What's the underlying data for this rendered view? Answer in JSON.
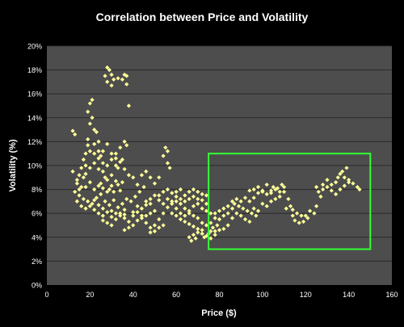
{
  "chart_data": {
    "type": "scatter",
    "title": "Correlation between Price and Volatility",
    "xlabel": "Price ($)",
    "ylabel": "Volatility (%)",
    "xlim": [
      0,
      160
    ],
    "ylim": [
      0,
      0.2
    ],
    "x_ticks": [
      "0",
      "20",
      "40",
      "60",
      "80",
      "100",
      "120",
      "140",
      "160"
    ],
    "y_ticks": [
      "0%",
      "2%",
      "4%",
      "6%",
      "8%",
      "10%",
      "12%",
      "14%",
      "16%",
      "18%",
      "20%"
    ],
    "grid": "horizontal",
    "legend": "none",
    "colors": {
      "background": "#000000",
      "plot_area": "#4d4d4d",
      "gridline": "#2a2a2a",
      "points": "#ffff99",
      "highlight_box": "#33ff33"
    },
    "highlight_box": {
      "x": [
        75,
        150
      ],
      "y": [
        0.03,
        0.11
      ]
    },
    "points": [
      [
        12,
        0.129
      ],
      [
        13,
        0.126
      ],
      [
        12,
        0.095
      ],
      [
        14,
        0.085
      ],
      [
        15,
        0.08
      ],
      [
        16,
        0.082
      ],
      [
        14,
        0.088
      ],
      [
        17,
        0.09
      ],
      [
        18,
        0.1
      ],
      [
        18,
        0.11
      ],
      [
        19,
        0.122
      ],
      [
        20,
        0.135
      ],
      [
        21,
        0.14
      ],
      [
        20,
        0.152
      ],
      [
        21,
        0.155
      ],
      [
        19,
        0.145
      ],
      [
        22,
        0.13
      ],
      [
        23,
        0.128
      ],
      [
        24,
        0.12
      ],
      [
        22,
        0.118
      ],
      [
        20,
        0.112
      ],
      [
        24,
        0.112
      ],
      [
        25,
        0.108
      ],
      [
        26,
        0.095
      ],
      [
        27,
        0.09
      ],
      [
        25,
        0.085
      ],
      [
        28,
        0.088
      ],
      [
        30,
        0.092
      ],
      [
        29,
        0.08
      ],
      [
        31,
        0.078
      ],
      [
        33,
        0.084
      ],
      [
        35,
        0.086
      ],
      [
        32,
        0.11
      ],
      [
        34,
        0.115
      ],
      [
        36,
        0.12
      ],
      [
        37,
        0.117
      ],
      [
        35,
        0.105
      ],
      [
        33,
        0.098
      ],
      [
        38,
        0.092
      ],
      [
        40,
        0.09
      ],
      [
        38,
        0.15
      ],
      [
        28,
        0.182
      ],
      [
        29,
        0.18
      ],
      [
        30,
        0.176
      ],
      [
        27,
        0.175
      ],
      [
        28,
        0.17
      ],
      [
        31,
        0.172
      ],
      [
        30,
        0.167
      ],
      [
        33,
        0.173
      ],
      [
        35,
        0.172
      ],
      [
        36,
        0.176
      ],
      [
        37,
        0.175
      ],
      [
        37,
        0.168
      ],
      [
        15,
        0.075
      ],
      [
        17,
        0.072
      ],
      [
        19,
        0.07
      ],
      [
        21,
        0.068
      ],
      [
        23,
        0.073
      ],
      [
        25,
        0.076
      ],
      [
        27,
        0.07
      ],
      [
        29,
        0.067
      ],
      [
        31,
        0.071
      ],
      [
        33,
        0.065
      ],
      [
        35,
        0.068
      ],
      [
        37,
        0.072
      ],
      [
        39,
        0.07
      ],
      [
        41,
        0.074
      ],
      [
        43,
        0.078
      ],
      [
        45,
        0.082
      ],
      [
        42,
        0.084
      ],
      [
        44,
        0.092
      ],
      [
        46,
        0.095
      ],
      [
        48,
        0.09
      ],
      [
        50,
        0.085
      ],
      [
        52,
        0.09
      ],
      [
        54,
        0.108
      ],
      [
        55,
        0.115
      ],
      [
        56,
        0.112
      ],
      [
        56,
        0.102
      ],
      [
        57,
        0.098
      ],
      [
        22,
        0.063
      ],
      [
        24,
        0.06
      ],
      [
        26,
        0.058
      ],
      [
        30,
        0.062
      ],
      [
        34,
        0.06
      ],
      [
        36,
        0.063
      ],
      [
        40,
        0.061
      ],
      [
        42,
        0.066
      ],
      [
        46,
        0.07
      ],
      [
        48,
        0.068
      ],
      [
        26,
        0.054
      ],
      [
        28,
        0.052
      ],
      [
        30,
        0.05
      ],
      [
        32,
        0.055
      ],
      [
        36,
        0.056
      ],
      [
        38,
        0.053
      ],
      [
        40,
        0.058
      ],
      [
        44,
        0.058
      ],
      [
        46,
        0.052
      ],
      [
        48,
        0.048
      ],
      [
        50,
        0.05
      ],
      [
        52,
        0.055
      ],
      [
        54,
        0.06
      ],
      [
        56,
        0.065
      ],
      [
        58,
        0.068
      ],
      [
        60,
        0.07
      ],
      [
        62,
        0.072
      ],
      [
        64,
        0.075
      ],
      [
        66,
        0.078
      ],
      [
        68,
        0.08
      ],
      [
        70,
        0.078
      ],
      [
        72,
        0.076
      ],
      [
        74,
        0.075
      ],
      [
        52,
        0.075
      ],
      [
        54,
        0.078
      ],
      [
        56,
        0.08
      ],
      [
        58,
        0.077
      ],
      [
        60,
        0.074
      ],
      [
        62,
        0.068
      ],
      [
        64,
        0.064
      ],
      [
        66,
        0.06
      ],
      [
        68,
        0.058
      ],
      [
        70,
        0.056
      ],
      [
        72,
        0.052
      ],
      [
        74,
        0.05
      ],
      [
        76,
        0.052
      ],
      [
        78,
        0.056
      ],
      [
        76,
        0.045
      ],
      [
        72,
        0.046
      ],
      [
        70,
        0.044
      ],
      [
        68,
        0.042
      ],
      [
        66,
        0.04
      ],
      [
        67,
        0.037
      ],
      [
        69,
        0.039
      ],
      [
        73,
        0.04
      ],
      [
        75,
        0.043
      ],
      [
        77,
        0.048
      ],
      [
        79,
        0.05
      ],
      [
        80,
        0.055
      ],
      [
        82,
        0.058
      ],
      [
        84,
        0.06
      ],
      [
        86,
        0.064
      ],
      [
        87,
        0.068
      ],
      [
        89,
        0.066
      ],
      [
        90,
        0.07
      ],
      [
        92,
        0.073
      ],
      [
        94,
        0.07
      ],
      [
        96,
        0.073
      ],
      [
        98,
        0.077
      ],
      [
        100,
        0.079
      ],
      [
        102,
        0.076
      ],
      [
        104,
        0.079
      ],
      [
        105,
        0.082
      ],
      [
        107,
        0.081
      ],
      [
        109,
        0.084
      ],
      [
        110,
        0.078
      ],
      [
        112,
        0.072
      ],
      [
        113,
        0.066
      ],
      [
        114,
        0.063
      ],
      [
        116,
        0.06
      ],
      [
        118,
        0.058
      ],
      [
        120,
        0.058
      ],
      [
        122,
        0.062
      ],
      [
        124,
        0.06
      ],
      [
        125,
        0.066
      ],
      [
        88,
        0.06
      ],
      [
        90,
        0.058
      ],
      [
        92,
        0.055
      ],
      [
        94,
        0.053
      ],
      [
        86,
        0.056
      ],
      [
        84,
        0.05
      ],
      [
        82,
        0.047
      ],
      [
        80,
        0.046
      ],
      [
        78,
        0.045
      ],
      [
        96,
        0.064
      ],
      [
        98,
        0.062
      ],
      [
        100,
        0.068
      ],
      [
        102,
        0.066
      ],
      [
        104,
        0.07
      ],
      [
        106,
        0.072
      ],
      [
        108,
        0.074
      ],
      [
        115,
        0.054
      ],
      [
        117,
        0.052
      ],
      [
        119,
        0.053
      ],
      [
        121,
        0.056
      ],
      [
        111,
        0.064
      ],
      [
        114,
        0.058
      ],
      [
        126,
        0.078
      ],
      [
        128,
        0.08
      ],
      [
        130,
        0.082
      ],
      [
        132,
        0.084
      ],
      [
        134,
        0.086
      ],
      [
        135,
        0.09
      ],
      [
        136,
        0.093
      ],
      [
        137,
        0.095
      ],
      [
        139,
        0.098
      ],
      [
        138,
        0.09
      ],
      [
        140,
        0.088
      ],
      [
        142,
        0.085
      ],
      [
        144,
        0.082
      ],
      [
        145,
        0.08
      ],
      [
        128,
        0.084
      ],
      [
        130,
        0.088
      ],
      [
        132,
        0.079
      ],
      [
        134,
        0.076
      ],
      [
        136,
        0.08
      ],
      [
        138,
        0.083
      ],
      [
        140,
        0.086
      ],
      [
        125,
        0.082
      ],
      [
        127,
        0.074
      ],
      [
        16,
        0.098
      ],
      [
        18,
        0.093
      ],
      [
        20,
        0.098
      ],
      [
        22,
        0.102
      ],
      [
        24,
        0.097
      ],
      [
        26,
        0.102
      ],
      [
        28,
        0.1
      ],
      [
        30,
        0.105
      ],
      [
        32,
        0.1
      ],
      [
        34,
        0.103
      ],
      [
        36,
        0.097
      ],
      [
        18,
        0.082
      ],
      [
        20,
        0.086
      ],
      [
        22,
        0.08
      ],
      [
        24,
        0.083
      ],
      [
        26,
        0.081
      ],
      [
        28,
        0.078
      ],
      [
        30,
        0.083
      ],
      [
        32,
        0.087
      ],
      [
        34,
        0.079
      ],
      [
        18,
        0.064
      ],
      [
        20,
        0.066
      ],
      [
        22,
        0.071
      ],
      [
        24,
        0.067
      ],
      [
        26,
        0.064
      ],
      [
        28,
        0.061
      ],
      [
        30,
        0.057
      ],
      [
        32,
        0.06
      ],
      [
        34,
        0.058
      ],
      [
        36,
        0.059
      ],
      [
        42,
        0.061
      ],
      [
        44,
        0.064
      ],
      [
        46,
        0.067
      ],
      [
        48,
        0.072
      ],
      [
        50,
        0.075
      ],
      [
        52,
        0.071
      ],
      [
        54,
        0.068
      ],
      [
        56,
        0.072
      ],
      [
        58,
        0.07
      ],
      [
        60,
        0.064
      ],
      [
        62,
        0.06
      ],
      [
        64,
        0.058
      ],
      [
        66,
        0.062
      ],
      [
        68,
        0.066
      ],
      [
        70,
        0.068
      ],
      [
        72,
        0.064
      ],
      [
        74,
        0.062
      ],
      [
        76,
        0.06
      ],
      [
        60,
        0.078
      ],
      [
        62,
        0.08
      ],
      [
        64,
        0.07
      ],
      [
        66,
        0.072
      ],
      [
        68,
        0.074
      ],
      [
        70,
        0.072
      ],
      [
        72,
        0.071
      ],
      [
        74,
        0.068
      ],
      [
        58,
        0.06
      ],
      [
        60,
        0.058
      ],
      [
        62,
        0.055
      ],
      [
        64,
        0.053
      ],
      [
        66,
        0.051
      ],
      [
        68,
        0.049
      ],
      [
        70,
        0.047
      ],
      [
        72,
        0.043
      ],
      [
        74,
        0.041
      ],
      [
        76,
        0.039
      ],
      [
        78,
        0.042
      ],
      [
        50,
        0.062
      ],
      [
        48,
        0.06
      ],
      [
        46,
        0.058
      ],
      [
        44,
        0.056
      ],
      [
        42,
        0.054
      ],
      [
        40,
        0.05
      ],
      [
        38,
        0.048
      ],
      [
        36,
        0.046
      ],
      [
        50,
        0.045
      ],
      [
        48,
        0.044
      ],
      [
        52,
        0.048
      ],
      [
        54,
        0.05
      ],
      [
        22,
        0.11
      ],
      [
        24,
        0.106
      ],
      [
        26,
        0.112
      ],
      [
        28,
        0.118
      ],
      [
        30,
        0.11
      ],
      [
        32,
        0.106
      ],
      [
        19,
        0.117
      ],
      [
        17,
        0.105
      ],
      [
        15,
        0.092
      ],
      [
        13,
        0.078
      ],
      [
        14,
        0.07
      ],
      [
        16,
        0.066
      ],
      [
        94,
        0.079
      ],
      [
        96,
        0.08
      ],
      [
        98,
        0.082
      ],
      [
        100,
        0.078
      ],
      [
        102,
        0.084
      ],
      [
        104,
        0.077
      ],
      [
        106,
        0.08
      ],
      [
        108,
        0.078
      ],
      [
        110,
        0.082
      ],
      [
        91,
        0.064
      ],
      [
        93,
        0.062
      ],
      [
        95,
        0.06
      ],
      [
        97,
        0.058
      ],
      [
        88,
        0.072
      ],
      [
        86,
        0.07
      ],
      [
        84,
        0.066
      ],
      [
        82,
        0.064
      ],
      [
        80,
        0.062
      ],
      [
        78,
        0.06
      ]
    ]
  }
}
